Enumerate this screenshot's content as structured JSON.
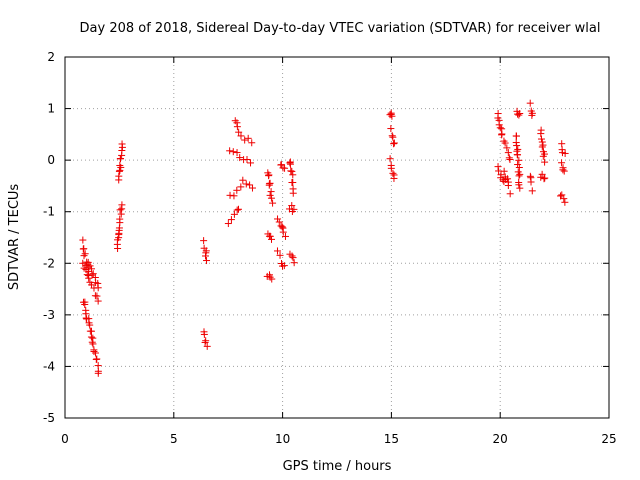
{
  "chart_data": {
    "type": "scatter",
    "title": "Day 208 of 2018, Sidereal Day-to-day VTEC variation (SDTVAR) for receiver wlal",
    "xlabel": "GPS time / hours",
    "ylabel": "SDTVAR / TECUs",
    "xlim": [
      0,
      25
    ],
    "ylim": [
      -5,
      2
    ],
    "xticks": [
      "0",
      "5",
      "10",
      "15",
      "20",
      "25"
    ],
    "yticks": [
      "-5",
      "-4",
      "-3",
      "-2",
      "-1",
      "0",
      "1",
      "2"
    ],
    "grid": true,
    "marker": "+",
    "color": "#ee0000",
    "clusters": [
      {
        "x": [
          0.8,
          1.1
        ],
        "y": [
          -1.6,
          -2.2
        ]
      },
      {
        "x": [
          0.8,
          1.5
        ],
        "y": [
          -2.0,
          -2.7
        ]
      },
      {
        "x": [
          0.85,
          1.55
        ],
        "y": [
          -2.7,
          -4.1
        ]
      },
      {
        "x": [
          1.1,
          1.55
        ],
        "y": [
          -2.0,
          -2.5
        ]
      },
      {
        "x": [
          2.4,
          2.6
        ],
        "y": [
          -1.7,
          -0.9
        ]
      },
      {
        "x": [
          2.45,
          2.65
        ],
        "y": [
          -0.4,
          0.3
        ]
      },
      {
        "x": [
          6.4,
          6.5
        ],
        "y": [
          -1.6,
          -1.95
        ]
      },
      {
        "x": [
          6.4,
          6.5
        ],
        "y": [
          -3.3,
          -3.6
        ]
      },
      {
        "x": [
          7.5,
          8.0
        ],
        "y": [
          -1.2,
          -0.9
        ]
      },
      {
        "x": [
          7.6,
          8.1
        ],
        "y": [
          -0.7,
          -0.5
        ]
      },
      {
        "x": [
          7.6,
          8.5
        ],
        "y": [
          0.2,
          0.0
        ]
      },
      {
        "x": [
          7.8,
          8.0
        ],
        "y": [
          0.8,
          0.6
        ]
      },
      {
        "x": [
          8.1,
          8.6
        ],
        "y": [
          0.5,
          0.3
        ]
      },
      {
        "x": [
          8.2,
          8.6
        ],
        "y": [
          -0.4,
          -0.55
        ]
      },
      {
        "x": [
          9.3,
          9.5
        ],
        "y": [
          -0.2,
          -0.8
        ]
      },
      {
        "x": [
          9.3,
          9.5
        ],
        "y": [
          -1.45,
          -1.5
        ]
      },
      {
        "x": [
          9.3,
          9.5
        ],
        "y": [
          -2.2,
          -2.3
        ]
      },
      {
        "x": [
          9.9,
          10.1
        ],
        "y": [
          -0.1,
          -0.15
        ]
      },
      {
        "x": [
          9.8,
          10.1
        ],
        "y": [
          -1.1,
          -1.5
        ]
      },
      {
        "x": [
          9.8,
          10.1
        ],
        "y": [
          -1.8,
          -2.1
        ]
      },
      {
        "x": [
          10.35,
          10.5
        ],
        "y": [
          0.0,
          -0.6
        ]
      },
      {
        "x": [
          10.35,
          10.5
        ],
        "y": [
          -0.9,
          -1.0
        ]
      },
      {
        "x": [
          10.35,
          10.5
        ],
        "y": [
          -1.8,
          -2.0
        ]
      },
      {
        "x": [
          14.95,
          15.05
        ],
        "y": [
          0.9,
          0.85
        ]
      },
      {
        "x": [
          14.95,
          15.15
        ],
        "y": [
          0.6,
          0.3
        ]
      },
      {
        "x": [
          14.95,
          15.15
        ],
        "y": [
          0.0,
          -0.35
        ]
      },
      {
        "x": [
          19.9,
          20.1
        ],
        "y": [
          0.9,
          0.45
        ]
      },
      {
        "x": [
          19.9,
          20.15
        ],
        "y": [
          -0.1,
          -0.45
        ]
      },
      {
        "x": [
          20.2,
          20.45
        ],
        "y": [
          0.35,
          0.0
        ]
      },
      {
        "x": [
          20.2,
          20.45
        ],
        "y": [
          -0.2,
          -0.6
        ]
      },
      {
        "x": [
          20.75,
          20.9
        ],
        "y": [
          0.95,
          0.85
        ]
      },
      {
        "x": [
          20.75,
          20.9
        ],
        "y": [
          0.5,
          -0.5
        ]
      },
      {
        "x": [
          21.35,
          21.5
        ],
        "y": [
          1.05,
          0.85
        ]
      },
      {
        "x": [
          21.35,
          21.5
        ],
        "y": [
          -0.3,
          -0.55
        ]
      },
      {
        "x": [
          21.85,
          22.05
        ],
        "y": [
          0.6,
          0.0
        ]
      },
      {
        "x": [
          21.85,
          22.05
        ],
        "y": [
          -0.3,
          -0.4
        ]
      },
      {
        "x": [
          22.8,
          22.95
        ],
        "y": [
          0.3,
          0.1
        ]
      },
      {
        "x": [
          22.8,
          22.95
        ],
        "y": [
          -0.1,
          -0.25
        ]
      },
      {
        "x": [
          22.8,
          22.95
        ],
        "y": [
          -0.65,
          -0.85
        ]
      }
    ]
  }
}
